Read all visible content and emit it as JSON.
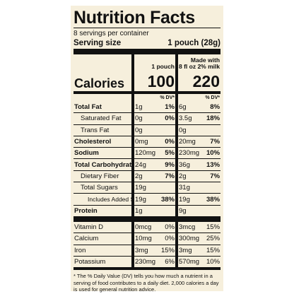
{
  "title": "Nutrition Facts",
  "servings": "8 servings per container",
  "serving_size": {
    "label": "Serving size",
    "value": "1 pouch (28g)"
  },
  "columns": [
    {
      "header": [
        "1 pouch"
      ],
      "calories": "100"
    },
    {
      "header": [
        "Made with",
        "8 fl oz 2% milk"
      ],
      "calories": "220"
    }
  ],
  "calories_label": "Calories",
  "dv_header": "% DV*",
  "nutrients": [
    {
      "name": "Total Fat",
      "amount1": "1g",
      "dv1": "1%",
      "amount2": "6g",
      "dv2": "8%"
    },
    {
      "name": "Saturated Fat",
      "amount1": "0g",
      "dv1": "0%",
      "amount2": "3.5g",
      "dv2": "18%"
    },
    {
      "name": "Trans Fat",
      "amount1": "0g",
      "amount2": "0g"
    },
    {
      "name": "Cholesterol",
      "amount1": "0mg",
      "dv1": "0%",
      "amount2": "20mg",
      "dv2": "7%"
    },
    {
      "name": "Sodium",
      "amount1": "120mg",
      "dv1": "5%",
      "amount2": "230mg",
      "dv2": "10%"
    },
    {
      "name": "Total Carbohydrate",
      "amount1": "24g",
      "dv1": "9%",
      "amount2": "36g",
      "dv2": "13%"
    },
    {
      "name": "Dietary Fiber",
      "amount1": "2g",
      "dv1": "7%",
      "amount2": "2g",
      "dv2": "7%"
    },
    {
      "name": "Total Sugars",
      "amount1": "19g",
      "amount2": "31g"
    },
    {
      "name": "Includes Added Sugars",
      "amount1": "19g",
      "dv1": "38%",
      "amount2": "19g",
      "dv2": "38%"
    },
    {
      "name": "Protein",
      "amount1": "1g",
      "amount2": "9g"
    }
  ],
  "vitamins": [
    {
      "name": "Vitamin D",
      "amount1": "0mcg",
      "dv1": "0%",
      "amount2": "3mcg",
      "dv2": "15%"
    },
    {
      "name": "Calcium",
      "amount1": "10mg",
      "dv1": "0%",
      "amount2": "300mg",
      "dv2": "25%"
    },
    {
      "name": "Iron",
      "amount1": "3mg",
      "dv1": "15%",
      "amount2": "3mg",
      "dv2": "15%"
    },
    {
      "name": "Potassium",
      "amount1": "230mg",
      "dv1": "6%",
      "amount2": "570mg",
      "dv2": "10%"
    }
  ],
  "footnote": "* The % Daily Value (DV) tells you how much a nutrient in a serving of food contributes to a daily diet. 2,000 calories a day is used for general nutrition advice."
}
